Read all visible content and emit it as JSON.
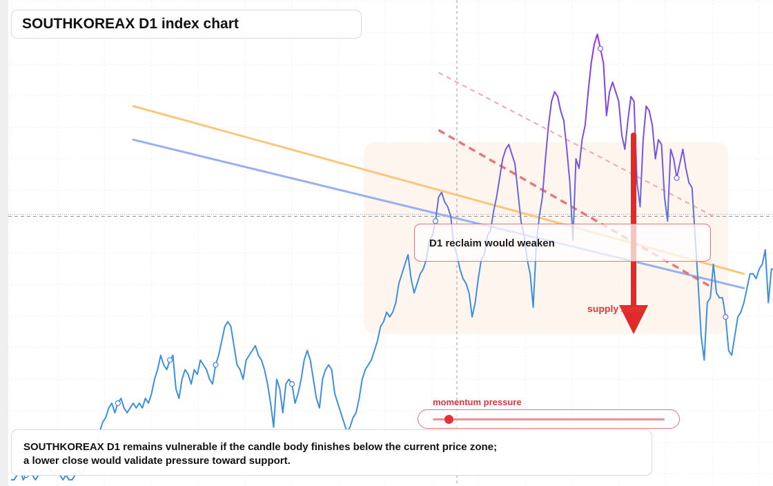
{
  "title": "SOUTHKOREAX D1 index chart",
  "annotation": "D1 reclaim would weaken",
  "zone_label": "supply zone",
  "momentum": {
    "label": "momentum pressure",
    "level": 0.07
  },
  "caption": {
    "line1": "SOUTHKOREAX D1 remains vulnerable if the candle body finishes below the current price zone;",
    "line2": "a lower close would validate pressure toward support."
  },
  "colors": {
    "price_low": "#3b8fe0",
    "price_high": "#a020e8",
    "ma_orange": "#f8c77a",
    "ma_blue": "#97b0ef",
    "trend_dashed": "#e8767b",
    "trend_dashed_light": "#f2a8ab",
    "arrow": "#e02a2a",
    "zone_fill": "#fdf1ea"
  },
  "chart_data": {
    "type": "line",
    "title": "SOUTHKOREAX D1 index chart",
    "xlabel": "",
    "ylabel": "",
    "x_range": [
      0,
      245
    ],
    "ylim": [
      0,
      100
    ],
    "grid": true,
    "series": [
      {
        "kind": "price",
        "values": [
          1,
          1,
          2,
          3,
          1,
          2,
          3,
          2,
          1,
          2,
          3,
          3,
          4,
          3,
          2,
          3,
          2,
          1,
          2,
          1,
          1,
          2,
          3,
          2,
          3,
          5,
          4,
          7,
          9,
          11,
          13,
          14,
          16,
          17,
          15,
          17,
          18,
          16,
          15,
          16,
          17,
          16,
          17,
          16,
          18,
          17,
          19,
          22,
          24,
          27,
          25,
          24,
          26,
          27,
          20,
          18,
          22,
          24,
          23,
          21,
          24,
          23,
          26,
          25,
          24,
          22,
          21,
          25,
          27,
          30,
          33,
          34,
          33,
          29,
          25,
          24,
          22,
          26,
          27,
          28,
          29,
          27,
          26,
          24,
          21,
          17,
          12,
          22,
          20,
          15,
          21,
          22,
          21,
          17,
          19,
          22,
          26,
          28,
          26,
          22,
          18,
          16,
          22,
          24,
          25,
          24,
          19,
          17,
          15,
          13,
          11,
          12,
          14,
          15,
          18,
          22,
          24,
          25,
          26,
          28,
          30,
          33,
          34,
          36,
          35,
          36,
          38,
          42,
          44,
          46,
          48,
          43,
          40,
          42,
          44,
          45,
          47,
          51,
          52,
          55,
          60,
          61,
          59,
          58,
          56,
          50,
          48,
          45,
          43,
          42,
          40,
          35,
          38,
          43,
          47,
          48,
          52,
          53,
          57,
          60,
          64,
          68,
          70,
          71,
          69,
          67,
          61,
          55,
          52,
          47,
          44,
          37,
          50,
          56,
          60,
          68,
          75,
          80,
          82,
          81,
          78,
          76,
          70,
          63,
          51,
          68,
          66,
          72,
          75,
          82,
          88,
          92,
          94,
          91,
          88,
          77,
          82,
          84,
          82,
          80,
          73,
          70,
          76,
          81,
          80,
          63,
          58,
          72,
          79,
          78,
          75,
          68,
          72,
          71,
          60,
          55,
          70,
          68,
          64,
          67,
          70,
          66,
          63,
          62,
          52,
          42,
          31,
          26,
          38,
          39,
          46,
          40,
          39,
          39,
          35,
          28,
          27,
          31,
          35,
          36,
          38,
          41,
          44,
          44,
          43,
          45,
          46,
          49,
          38,
          45,
          45,
          47,
          44
        ]
      },
      {
        "kind": "moving_average",
        "label": "",
        "from": [
          40,
          79
        ],
        "to": [
          240,
          44
        ]
      },
      {
        "kind": "moving_average",
        "label": "",
        "from": [
          40,
          72
        ],
        "to": [
          240,
          41
        ]
      }
    ],
    "trendlines": [
      {
        "style": "dashed",
        "from": [
          140,
          74
        ],
        "to": [
          230,
          41
        ]
      },
      {
        "style": "dashed-light",
        "from": [
          140,
          86
        ],
        "to": [
          230,
          56
        ]
      }
    ],
    "reference_price": 56,
    "cursor_x": 146
  }
}
